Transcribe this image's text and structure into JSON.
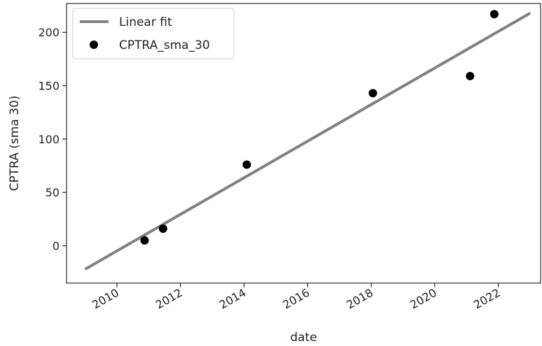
{
  "chart_data": {
    "type": "scatter",
    "xlabel": "date",
    "ylabel": "CPTRA (sma 30)",
    "x_axis_type": "date",
    "xlim": [
      "2008-06-01",
      "2023-05-01"
    ],
    "ylim": [
      -35,
      227
    ],
    "x_ticks": [
      {
        "value": "2010-01-01",
        "label": "2010"
      },
      {
        "value": "2012-01-01",
        "label": "2012"
      },
      {
        "value": "2014-01-01",
        "label": "2014"
      },
      {
        "value": "2016-01-01",
        "label": "2016"
      },
      {
        "value": "2018-01-01",
        "label": "2018"
      },
      {
        "value": "2020-01-01",
        "label": "2020"
      },
      {
        "value": "2022-01-01",
        "label": "2022"
      }
    ],
    "y_ticks": [
      0,
      50,
      100,
      150,
      200
    ],
    "grid": false,
    "legend": {
      "placement": "upper-left",
      "entries": [
        {
          "label": "Linear fit",
          "style": "line",
          "color": "#808080"
        },
        {
          "label": "CPTRA_sma_30",
          "style": "marker",
          "color": "#000000"
        }
      ]
    },
    "series": [
      {
        "name": "CPTRA_sma_30",
        "kind": "scatter",
        "color": "#000000",
        "points": [
          {
            "x": "2010-11-15",
            "y": 5
          },
          {
            "x": "2011-06-15",
            "y": 16
          },
          {
            "x": "2014-02-01",
            "y": 76
          },
          {
            "x": "2018-01-20",
            "y": 143
          },
          {
            "x": "2021-02-10",
            "y": 159
          },
          {
            "x": "2021-11-15",
            "y": 217
          }
        ]
      },
      {
        "name": "Linear fit",
        "kind": "line",
        "color": "#808080",
        "points": [
          {
            "x": "2009-01-01",
            "y": -22
          },
          {
            "x": "2023-01-01",
            "y": 218
          }
        ]
      }
    ]
  }
}
